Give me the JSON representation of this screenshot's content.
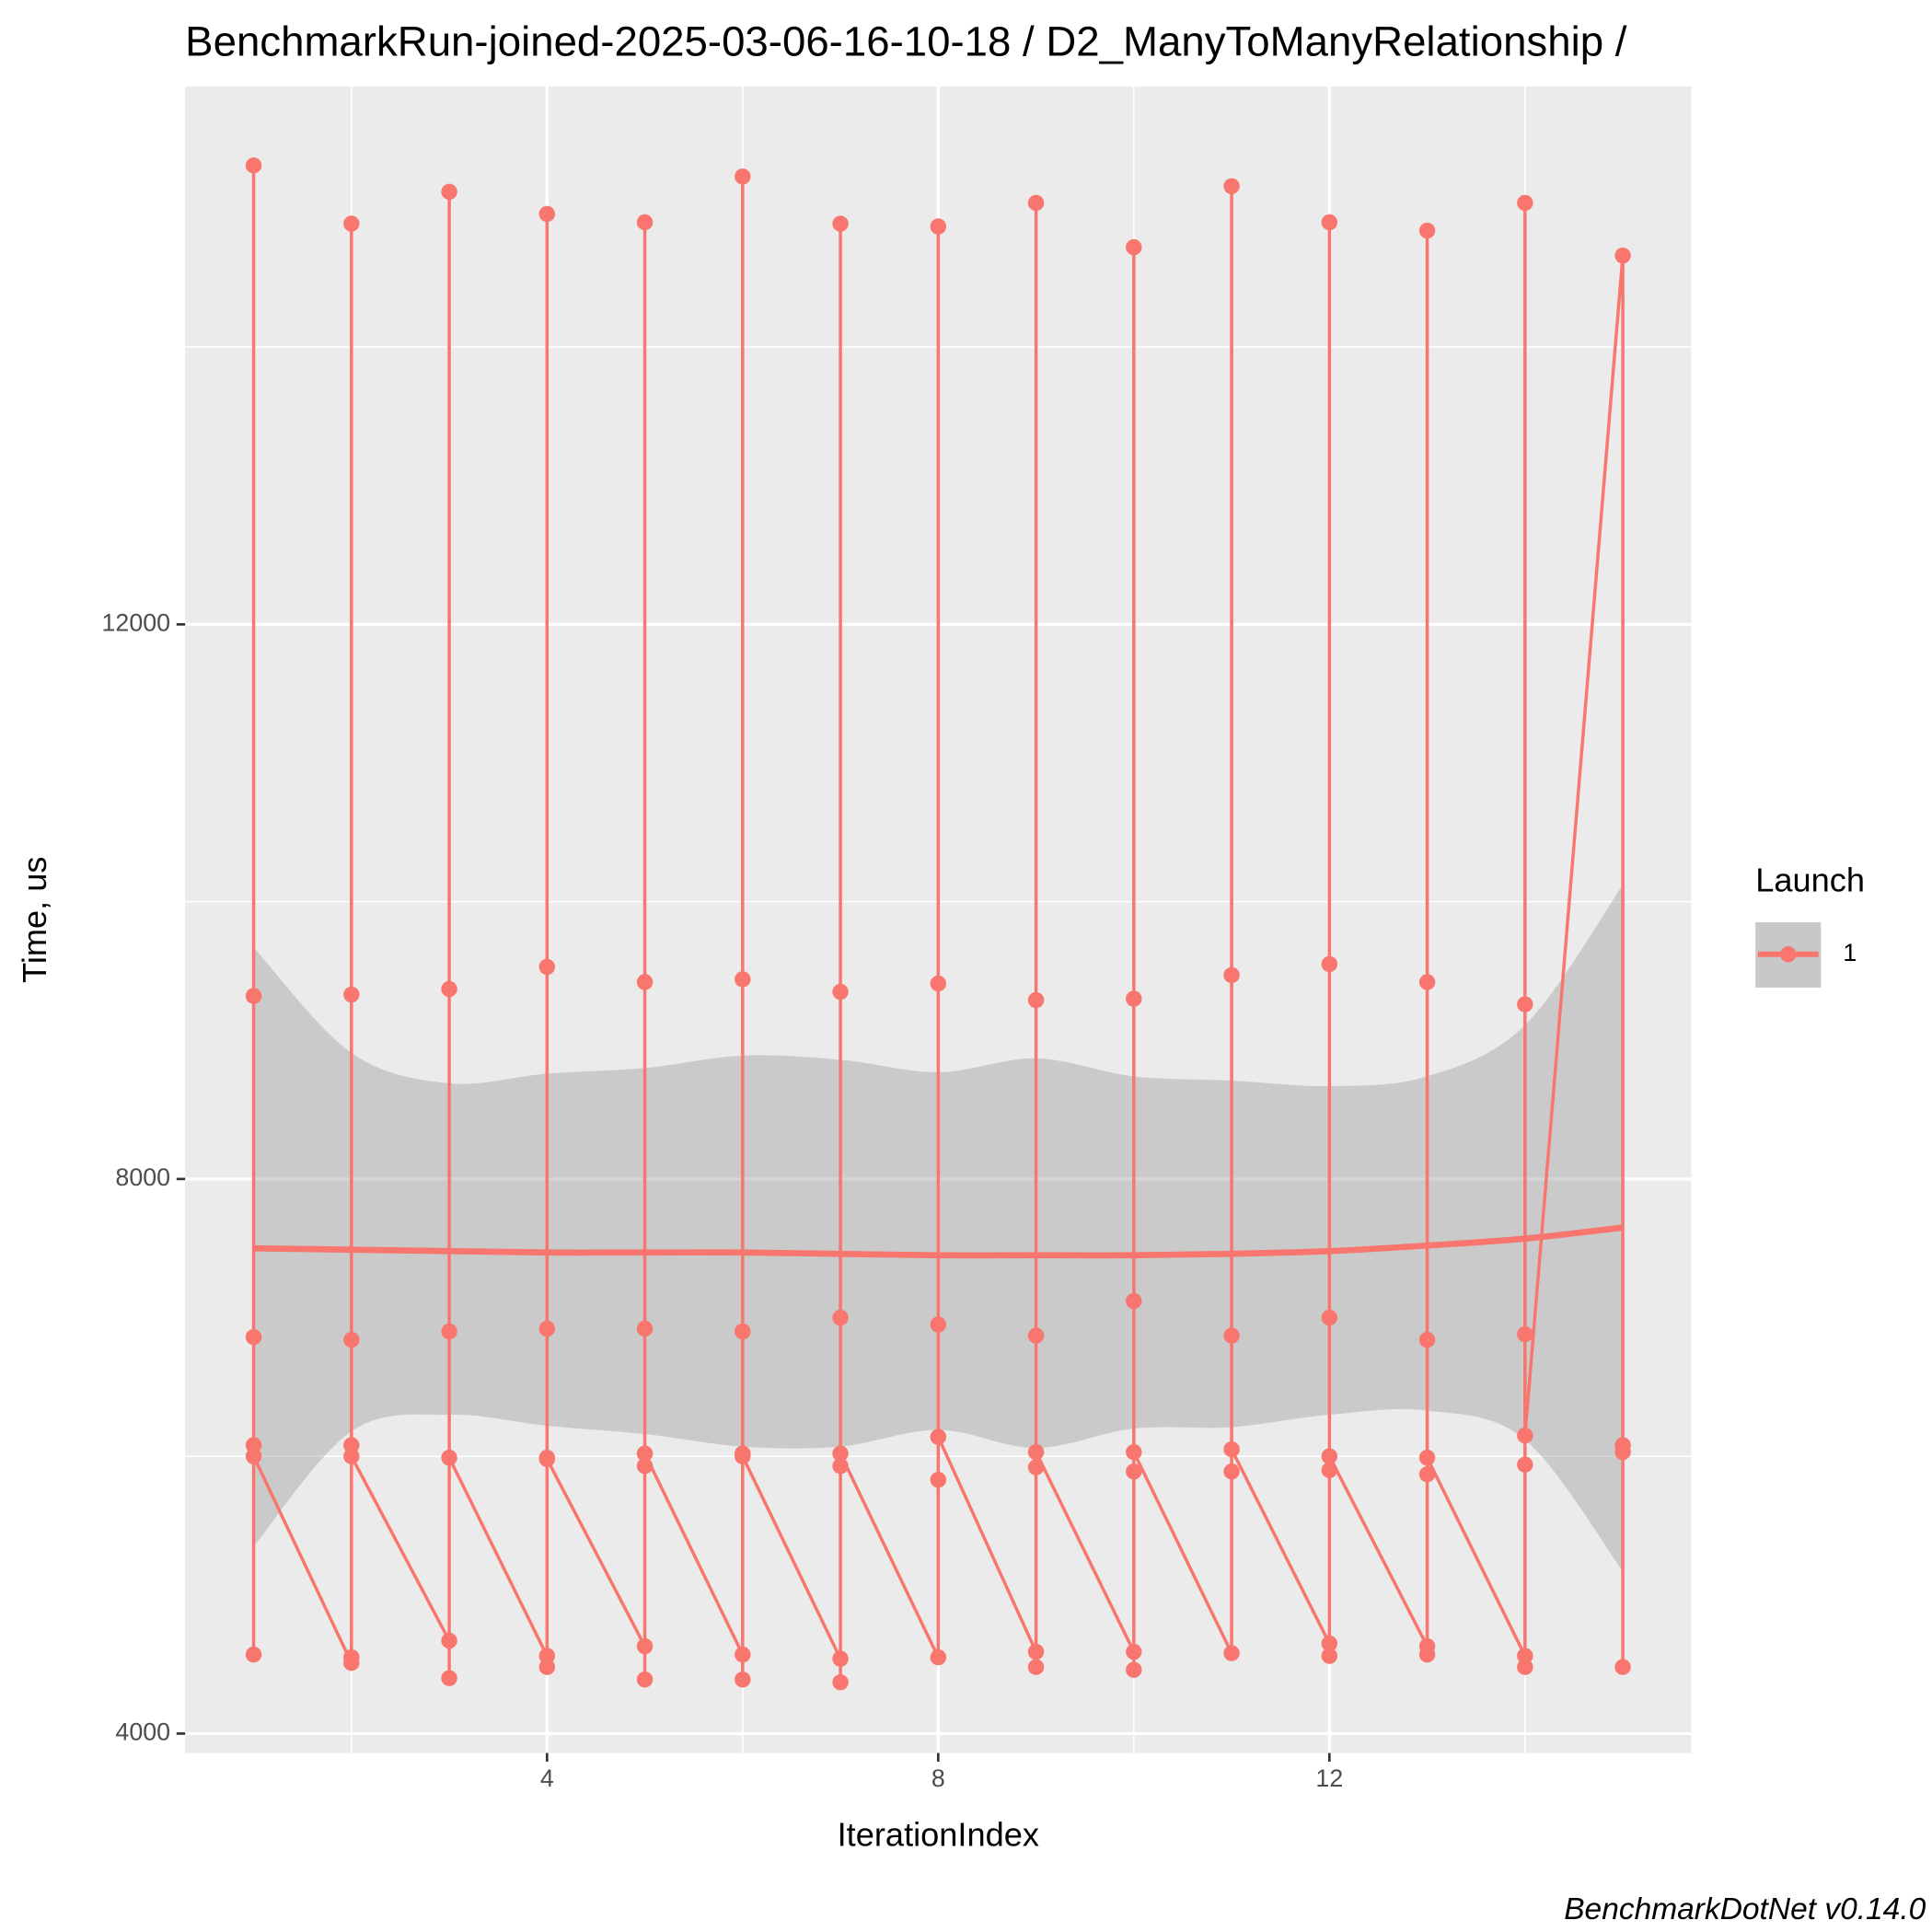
{
  "chart_data": {
    "type": "line",
    "title": "BenchmarkRun-joined-2025-03-06-16-10-18 / D2_ManyToManyRelationship /",
    "x_label": "IterationIndex",
    "y_label": "Time, us",
    "caption": "BenchmarkDotNet v0.14.0",
    "legend_title": "Launch",
    "legend_position": "right",
    "xlim": [
      0.3,
      15.7
    ],
    "ylim": [
      3860,
      15880
    ],
    "xticks": [
      4,
      8,
      12
    ],
    "yticks": [
      4000,
      8000,
      12000
    ],
    "x_minor_grid": [
      2,
      6,
      10,
      14
    ],
    "y_minor_grid": [
      6000,
      10000,
      14000
    ],
    "grid": true,
    "series": [
      {
        "name": "1",
        "color": "#F8766D",
        "x": [
          1,
          1,
          1,
          1,
          1,
          1,
          2,
          2,
          2,
          2,
          2,
          2,
          2,
          3,
          3,
          3,
          3,
          3,
          3,
          4,
          4,
          4,
          4,
          4,
          4,
          4,
          5,
          5,
          5,
          5,
          5,
          5,
          5,
          6,
          6,
          6,
          6,
          6,
          6,
          6,
          7,
          7,
          7,
          7,
          7,
          7,
          7,
          8,
          8,
          8,
          8,
          8,
          8,
          9,
          9,
          9,
          9,
          9,
          9,
          9,
          10,
          10,
          10,
          10,
          10,
          10,
          10,
          11,
          11,
          11,
          11,
          11,
          11,
          12,
          12,
          12,
          12,
          12,
          12,
          12,
          13,
          13,
          13,
          13,
          13,
          13,
          13,
          14,
          14,
          14,
          14,
          14,
          14,
          14,
          15,
          15,
          15,
          15
        ],
        "values": [
          6080,
          4570,
          15310,
          9320,
          6860,
          6000,
          4510,
          4550,
          14890,
          9330,
          6840,
          6080,
          6000,
          4670,
          4400,
          15120,
          9370,
          6900,
          5990,
          4560,
          4480,
          14960,
          9530,
          6920,
          5990,
          5980,
          4630,
          4390,
          14900,
          9420,
          6920,
          5930,
          6020,
          4570,
          4390,
          15230,
          9440,
          6900,
          6020,
          6000,
          4540,
          4370,
          14890,
          9350,
          7000,
          5930,
          6020,
          4550,
          14870,
          9410,
          6950,
          5830,
          6140,
          4590,
          4480,
          15040,
          9290,
          6870,
          5920,
          6030,
          4590,
          4460,
          14720,
          9300,
          7120,
          5890,
          6030,
          4580,
          15160,
          9470,
          6870,
          5890,
          6050,
          4650,
          4560,
          14900,
          9550,
          7000,
          5900,
          6000,
          4630,
          4570,
          14840,
          9420,
          6840,
          5870,
          5990,
          4560,
          4480,
          15040,
          9260,
          6880,
          5940,
          6150,
          14660,
          6080,
          6030,
          4480
        ]
      }
    ],
    "smooth": {
      "color": "#F8766D",
      "ribbon_color": "#999999",
      "x": [
        1,
        2,
        3,
        4,
        5,
        6,
        7,
        8,
        9,
        10,
        11,
        12,
        13,
        14,
        15
      ],
      "values": [
        7500,
        7490,
        7480,
        7470,
        7470,
        7470,
        7460,
        7450,
        7450,
        7450,
        7460,
        7480,
        7520,
        7570,
        7650
      ],
      "upper": [
        9670,
        8910,
        8690,
        8760,
        8800,
        8890,
        8860,
        8770,
        8870,
        8740,
        8710,
        8670,
        8740,
        9110,
        10120
      ],
      "lower": [
        5350,
        6180,
        6300,
        6220,
        6160,
        6070,
        6070,
        6190,
        6060,
        6200,
        6210,
        6300,
        6330,
        6120,
        5170
      ]
    }
  }
}
